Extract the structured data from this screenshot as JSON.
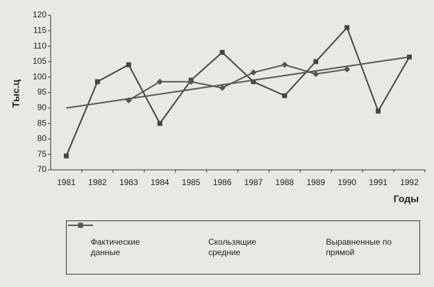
{
  "chart_data": {
    "type": "line",
    "xlabel": "Годы",
    "ylabel": "Тыс.ц",
    "categories": [
      "1981",
      "1982",
      "1983",
      "1984",
      "1985",
      "1986",
      "1987",
      "1988",
      "1989",
      "1990",
      "1991",
      "1992"
    ],
    "series": [
      {
        "name": "Фактические данные",
        "color": "#444444",
        "marker": "square",
        "values": [
          74.5,
          98.5,
          104,
          85,
          99,
          108,
          98.5,
          94,
          105,
          116,
          89,
          106.5
        ]
      },
      {
        "name": "Скользящие средние",
        "color": "#555555",
        "marker": "diamond",
        "values": [
          null,
          null,
          92.5,
          98.5,
          98.5,
          96.5,
          101.5,
          104,
          101,
          102.5,
          null,
          null
        ]
      },
      {
        "name": "Выравненные по прямой",
        "color": "#555555",
        "marker": null,
        "values": [
          90,
          91.5,
          93,
          94.5,
          96,
          97.5,
          99,
          100.5,
          102,
          103.5,
          105,
          106.5
        ]
      }
    ],
    "ylim": [
      70,
      120
    ],
    "yticks": [
      70,
      75,
      80,
      85,
      90,
      95,
      100,
      105,
      110,
      115,
      120
    ]
  }
}
